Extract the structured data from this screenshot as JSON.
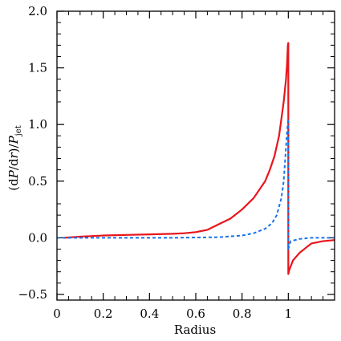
{
  "chart_data": {
    "type": "line",
    "xlabel": "Radius",
    "ylabel": "(dP/dr)/P_jet",
    "ylabel_parts": {
      "open": "(d",
      "p1": "P",
      "mid": "/d",
      "r": "r",
      "close": ")/",
      "p2": "P",
      "sub": "jet"
    },
    "xlim": [
      0,
      1.2
    ],
    "ylim": [
      -0.55,
      2.0
    ],
    "x_ticks": [
      0,
      0.2,
      0.4,
      0.6,
      0.8,
      1
    ],
    "x_tick_labels": [
      "0",
      "0.2",
      "0.4",
      "0.6",
      "0.8",
      "1"
    ],
    "y_ticks": [
      -0.5,
      0.0,
      0.5,
      1.0,
      1.5,
      2.0
    ],
    "y_tick_labels": [
      "−0.5",
      "0.0",
      "0.5",
      "1.0",
      "1.5",
      "2.0"
    ],
    "grid": false,
    "series": [
      {
        "style": "solid",
        "color": "#e8141c",
        "x": [
          0.03,
          0.1,
          0.2,
          0.3,
          0.4,
          0.5,
          0.55,
          0.6,
          0.65,
          0.7,
          0.75,
          0.8,
          0.85,
          0.9,
          0.92,
          0.94,
          0.96,
          0.97,
          0.98,
          0.99,
          0.995,
          0.998,
          1.0,
          1.0,
          1.005,
          1.02,
          1.05,
          1.1,
          1.15,
          1.2
        ],
        "y": [
          0.0,
          0.01,
          0.02,
          0.025,
          0.03,
          0.035,
          0.04,
          0.05,
          0.07,
          0.12,
          0.17,
          0.25,
          0.35,
          0.5,
          0.6,
          0.72,
          0.9,
          1.05,
          1.2,
          1.4,
          1.55,
          1.7,
          1.72,
          -0.32,
          -0.28,
          -0.2,
          -0.13,
          -0.05,
          -0.03,
          -0.02
        ]
      },
      {
        "style": "dashed",
        "color": "#1a73e8",
        "x": [
          0.0,
          0.5,
          0.7,
          0.8,
          0.85,
          0.9,
          0.93,
          0.95,
          0.97,
          0.98,
          0.99,
          0.995,
          1.0,
          1.0,
          1.01,
          1.05,
          1.1,
          1.2
        ],
        "y": [
          0.0,
          0.0,
          0.005,
          0.02,
          0.04,
          0.08,
          0.13,
          0.2,
          0.35,
          0.5,
          0.8,
          0.95,
          1.05,
          -0.1,
          -0.03,
          -0.01,
          0.0,
          0.0
        ]
      }
    ]
  }
}
